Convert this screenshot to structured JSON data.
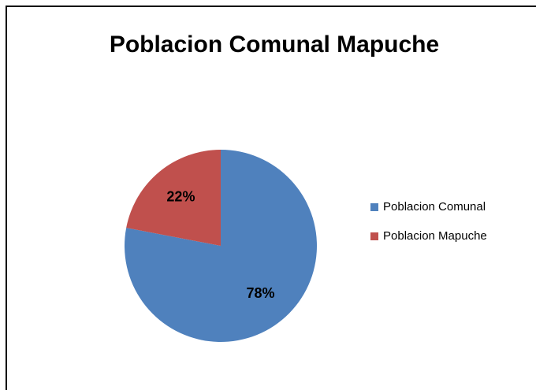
{
  "chart_data": {
    "type": "pie",
    "title": "Poblacion Comunal Mapuche",
    "categories": [
      "Poblacion Comunal",
      "Poblacion Mapuche"
    ],
    "values": [
      78,
      22
    ],
    "value_labels": [
      "78%",
      "22%"
    ],
    "colors": [
      "#4f81bd",
      "#c0504d"
    ],
    "legend": "right"
  }
}
